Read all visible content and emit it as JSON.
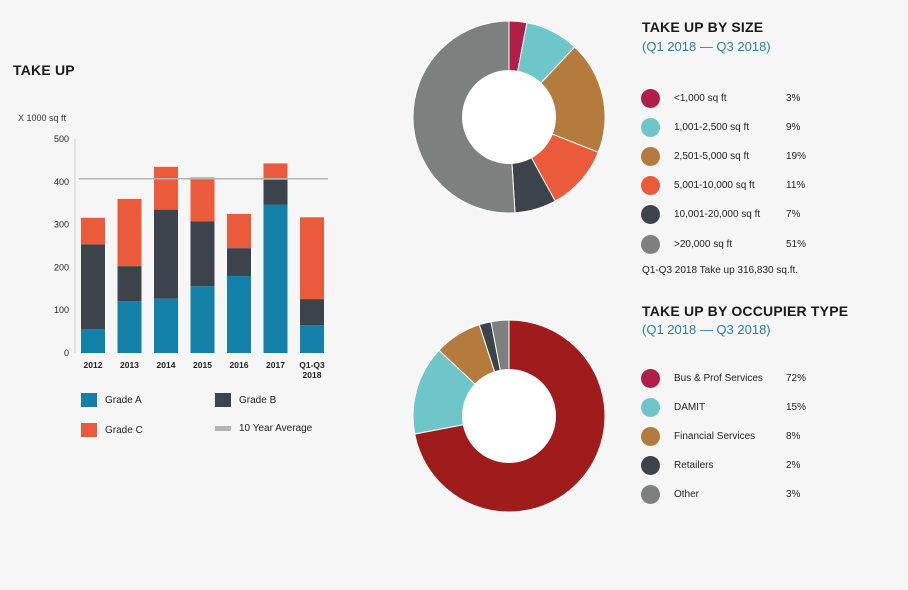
{
  "left": {
    "title": "TAKE UP",
    "unit": "X 1000 sq ft",
    "legend": [
      {
        "label": "Grade A",
        "color": "#1280a8"
      },
      {
        "label": "Grade B",
        "color": "#3d434b"
      },
      {
        "label": "Grade C",
        "color": "#ec5a3c"
      },
      {
        "label": "10 Year Average",
        "color": "#b3b3b3"
      }
    ]
  },
  "size_panel": {
    "title": "TAKE UP BY SIZE",
    "subtitle": "(Q1 2018 — Q3 2018)",
    "note": "Q1-Q3 2018 Take up 316,830 sq.ft."
  },
  "occupier_panel": {
    "title": "TAKE UP BY OCCUPIER TYPE",
    "subtitle": "(Q1 2018 — Q3 2018)"
  },
  "chart_data": [
    {
      "type": "bar",
      "stacked": true,
      "title": "TAKE UP",
      "ylabel": "X 1000 sq ft",
      "xlabel": "",
      "ylim": [
        0,
        500
      ],
      "yticks": [
        0,
        100,
        200,
        300,
        400,
        500
      ],
      "categories": [
        "2012",
        "2013",
        "2014",
        "2015",
        "2016",
        "2017",
        "Q1-Q3 2018"
      ],
      "series": [
        {
          "name": "Grade A",
          "color": "#1280a8",
          "values": [
            56,
            121,
            127,
            156,
            180,
            347,
            65
          ]
        },
        {
          "name": "Grade B",
          "color": "#3d434b",
          "values": [
            198,
            82,
            208,
            152,
            65,
            58,
            61
          ]
        },
        {
          "name": "Grade C",
          "color": "#ec5a3c",
          "values": [
            62,
            157,
            100,
            102,
            80,
            38,
            191
          ]
        }
      ],
      "reference_line": {
        "name": "10 Year Average",
        "value": 407,
        "color": "#b3b3b3"
      }
    },
    {
      "type": "pie",
      "donut": true,
      "title": "TAKE UP BY SIZE",
      "subtitle": "(Q1 2018 — Q3 2018)",
      "slices": [
        {
          "label": "<1,000 sq ft",
          "value": 3,
          "pct": "3%",
          "color": "#b01e4a"
        },
        {
          "label": "1,001-2,500 sq ft",
          "value": 9,
          "pct": "9%",
          "color": "#6ec6c9"
        },
        {
          "label": "2,501-5,000 sq ft",
          "value": 19,
          "pct": "19%",
          "color": "#b47b3c"
        },
        {
          "label": "5,001-10,000 sq ft",
          "value": 11,
          "pct": "11%",
          "color": "#ec5a3c"
        },
        {
          "label": "10,001-20,000 sq ft",
          "value": 7,
          "pct": "7%",
          "color": "#3d434b"
        },
        {
          "label": ">20,000 sq ft",
          "value": 51,
          "pct": "51%",
          "color": "#7c807f"
        }
      ]
    },
    {
      "type": "pie",
      "donut": true,
      "title": "TAKE UP BY OCCUPIER TYPE",
      "subtitle": "(Q1 2018 — Q3 2018)",
      "slices": [
        {
          "label": "Bus & Prof Services",
          "value": 72,
          "pct": "72%",
          "color": "#a01c1c",
          "legend_color": "#b01e4a"
        },
        {
          "label": "DAMIT",
          "value": 15,
          "pct": "15%",
          "color": "#6ec6c9"
        },
        {
          "label": "Financial Services",
          "value": 8,
          "pct": "8%",
          "color": "#b47b3c"
        },
        {
          "label": "Retailers",
          "value": 2,
          "pct": "2%",
          "color": "#3d434b"
        },
        {
          "label": "Other",
          "value": 3,
          "pct": "3%",
          "color": "#7c807f"
        }
      ]
    }
  ]
}
